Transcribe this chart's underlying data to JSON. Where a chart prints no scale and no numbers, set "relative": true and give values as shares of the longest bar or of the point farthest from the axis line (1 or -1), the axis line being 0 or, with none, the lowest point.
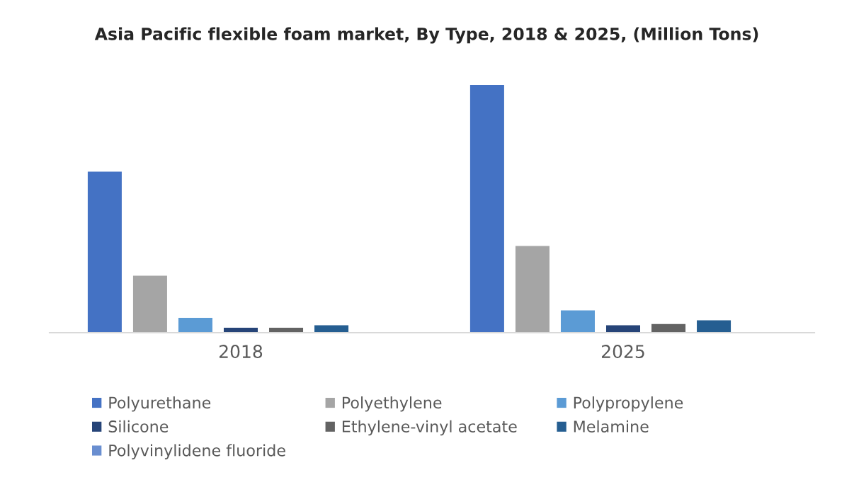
{
  "chart_data": {
    "type": "bar",
    "title": "Asia Pacific flexible foam market, By Type, 2018 & 2025, (Million Tons)",
    "categories": [
      "2018",
      "2025"
    ],
    "relative": true,
    "legend": "bottom",
    "grid": false,
    "series": [
      {
        "name": "Polyurethane",
        "color": "#4472c4",
        "values": [
          0.65,
          1
        ]
      },
      {
        "name": "Polyethylene",
        "color": "#a5a5a5",
        "values": [
          0.23,
          0.35
        ]
      },
      {
        "name": "Polypropylene",
        "color": "#5b9bd5",
        "values": [
          0.06,
          0.09
        ]
      },
      {
        "name": "Silicone",
        "color": "#264478",
        "values": [
          0.02,
          0.03
        ]
      },
      {
        "name": "Ethylene-vinyl acetate",
        "color": "#636363",
        "values": [
          0.02,
          0.035
        ]
      },
      {
        "name": "Melamine",
        "color": "#255e91",
        "values": [
          0.03,
          0.05
        ]
      },
      {
        "name": "Polyvinylidene fluoride",
        "color": "#698ed0",
        "values": [
          null,
          null
        ]
      }
    ]
  }
}
